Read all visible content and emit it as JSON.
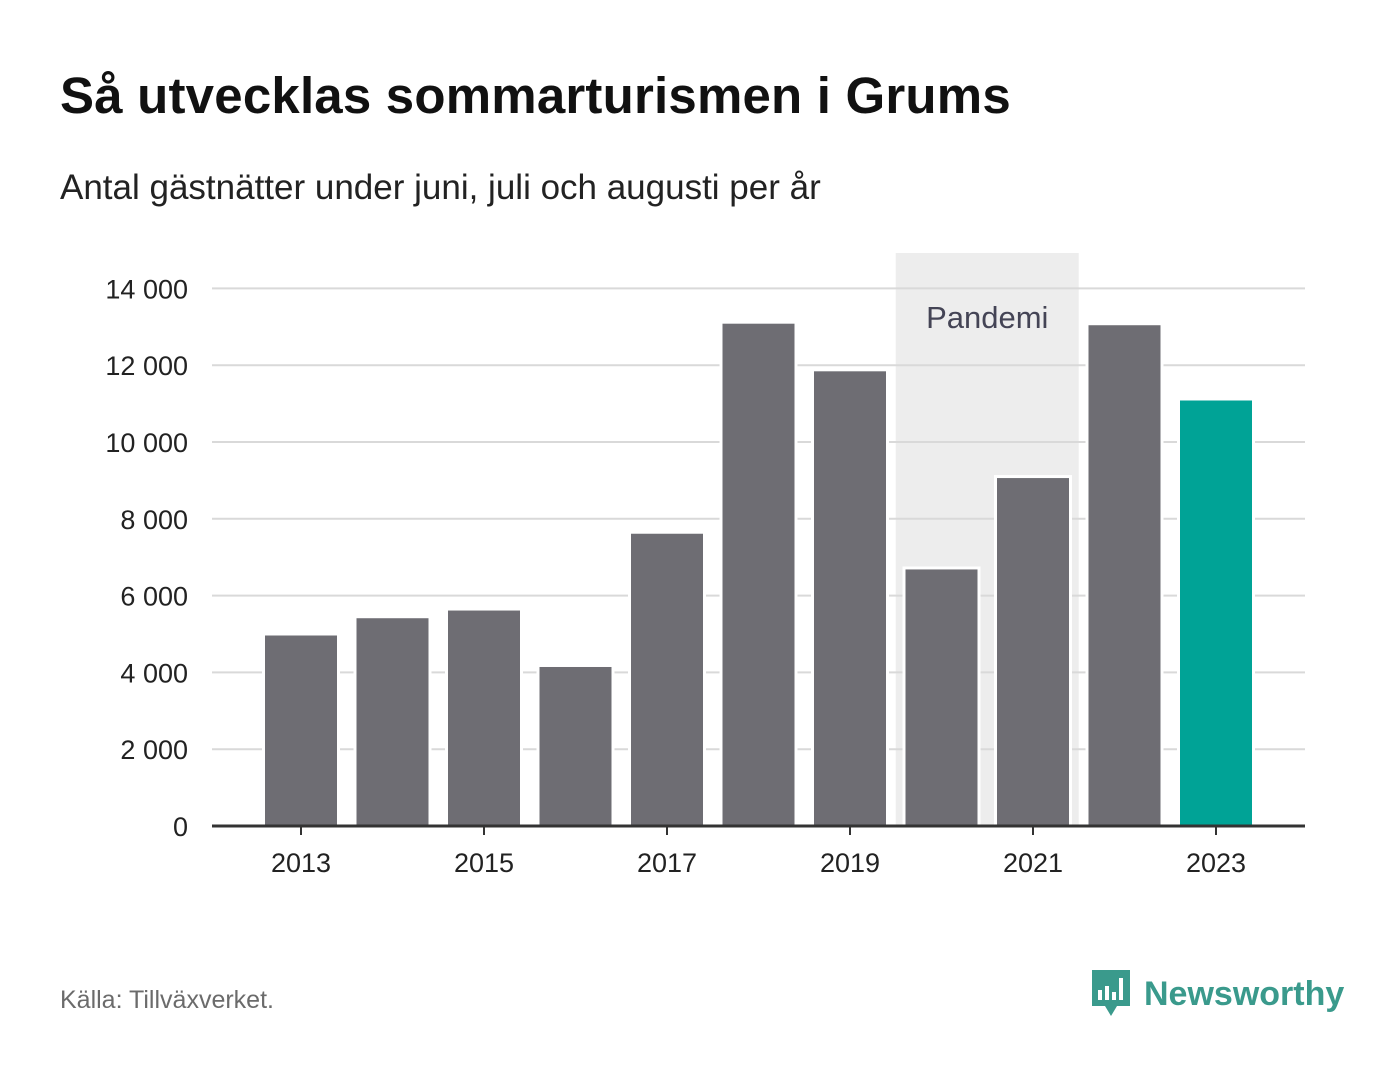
{
  "title": "Så utvecklas sommarturismen i Grums",
  "subtitle": "Antal gästnätter under juni, juli och augusti per år",
  "source": "Källa: Tillväxverket.",
  "brand": "Newsworthy",
  "colors": {
    "bar": "#6e6d73",
    "highlight": "#00a396",
    "shade": "#ededed",
    "grid": "#d9d9d9",
    "axis": "#333333",
    "brand": "#3a9a8c"
  },
  "chart_data": {
    "type": "bar",
    "categories": [
      "2013",
      "2014",
      "2015",
      "2016",
      "2017",
      "2018",
      "2019",
      "2020",
      "2021",
      "2022",
      "2023"
    ],
    "values": [
      5000,
      5450,
      5650,
      4180,
      7650,
      13120,
      11880,
      6720,
      9100,
      13080,
      11120
    ],
    "highlight_index": 10,
    "x_tick_labels": [
      "2013",
      "2015",
      "2017",
      "2019",
      "2021",
      "2023"
    ],
    "y_tick_labels": [
      "0",
      "2 000",
      "4 000",
      "6 000",
      "8 000",
      "10 000",
      "12 000",
      "14 000"
    ],
    "y_ticks": [
      0,
      2000,
      4000,
      6000,
      8000,
      10000,
      12000,
      14000
    ],
    "ylim": [
      0,
      15000
    ],
    "grid": true,
    "annotation": {
      "label": "Pandemi",
      "from_category": "2020",
      "to_category": "2021"
    }
  }
}
